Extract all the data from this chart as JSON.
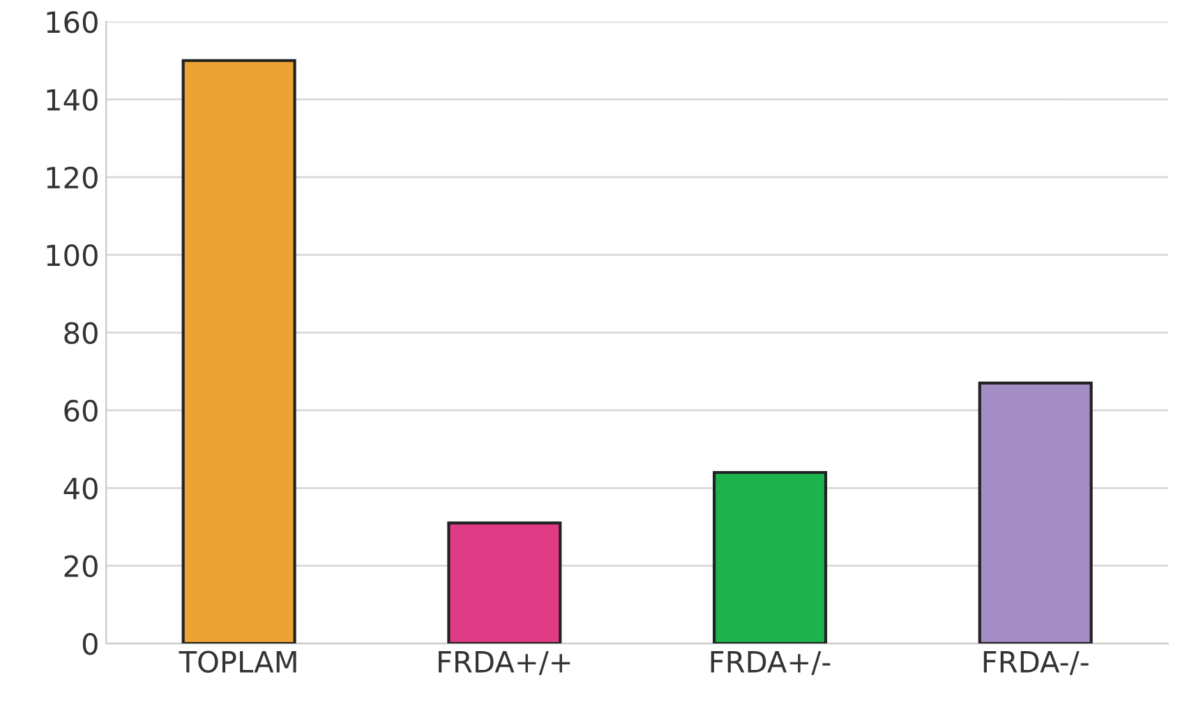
{
  "chart_data": {
    "type": "bar",
    "categories": [
      "TOPLAM",
      "FRDA+/+",
      "FRDA+/-",
      "FRDA-/-"
    ],
    "values": [
      150,
      31,
      44,
      67
    ],
    "colors": [
      "#eca334",
      "#e03c86",
      "#1db24c",
      "#a48cc4"
    ],
    "ylim": [
      0,
      160
    ],
    "yticks": [
      0,
      20,
      40,
      60,
      80,
      100,
      120,
      140,
      160
    ],
    "grid": "y"
  }
}
